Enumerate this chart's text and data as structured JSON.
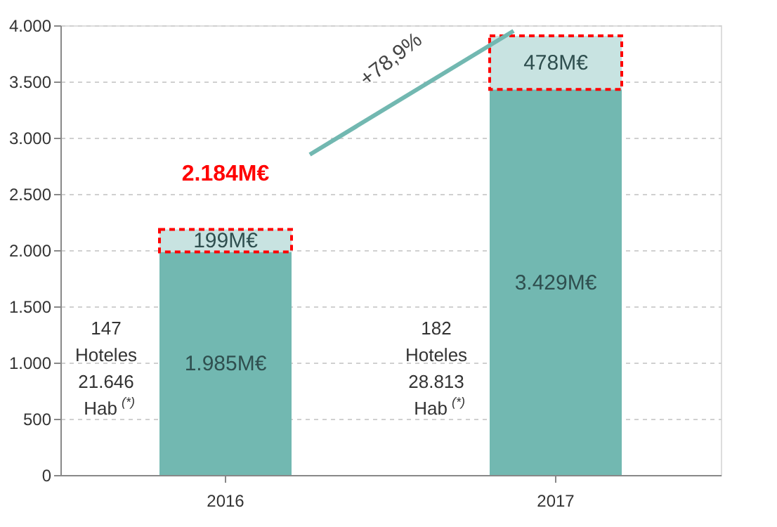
{
  "chart_data": {
    "type": "bar",
    "stacked": true,
    "categories": [
      "2016",
      "2017"
    ],
    "series": [
      {
        "color": "#72b8b1",
        "values": [
          1985,
          3429
        ],
        "value_labels": [
          "1.985M€",
          "3.429M€"
        ]
      },
      {
        "color": "#c8e3e1",
        "values": [
          199,
          478
        ],
        "value_labels": [
          "199M€",
          "478M€"
        ]
      }
    ],
    "totals": [
      "2.184M€",
      null
    ],
    "annotations": [
      "+78,9%",
      "147\nHoteles\n21.646\nHab $^{(*)}$",
      "182\nHoteles\n28.813\nHab $^{(*)}$"
    ],
    "ylim": [
      0,
      4000
    ],
    "yticks": [
      0,
      {
        "value": 500,
        "label": "500"
      },
      {
        "value": 1000,
        "label": "1.000"
      },
      {
        "value": 1500,
        "label": "1.500"
      },
      {
        "value": 2000,
        "label": "2.000"
      },
      {
        "value": 2500,
        "label": "2.500"
      },
      {
        "value": 3000,
        "label": "3.000"
      },
      {
        "value": 3500,
        "label": "3.500"
      },
      {
        "value": 4000,
        "label": "4.000"
      }
    ],
    "grid": "y",
    "legend": false
  }
}
